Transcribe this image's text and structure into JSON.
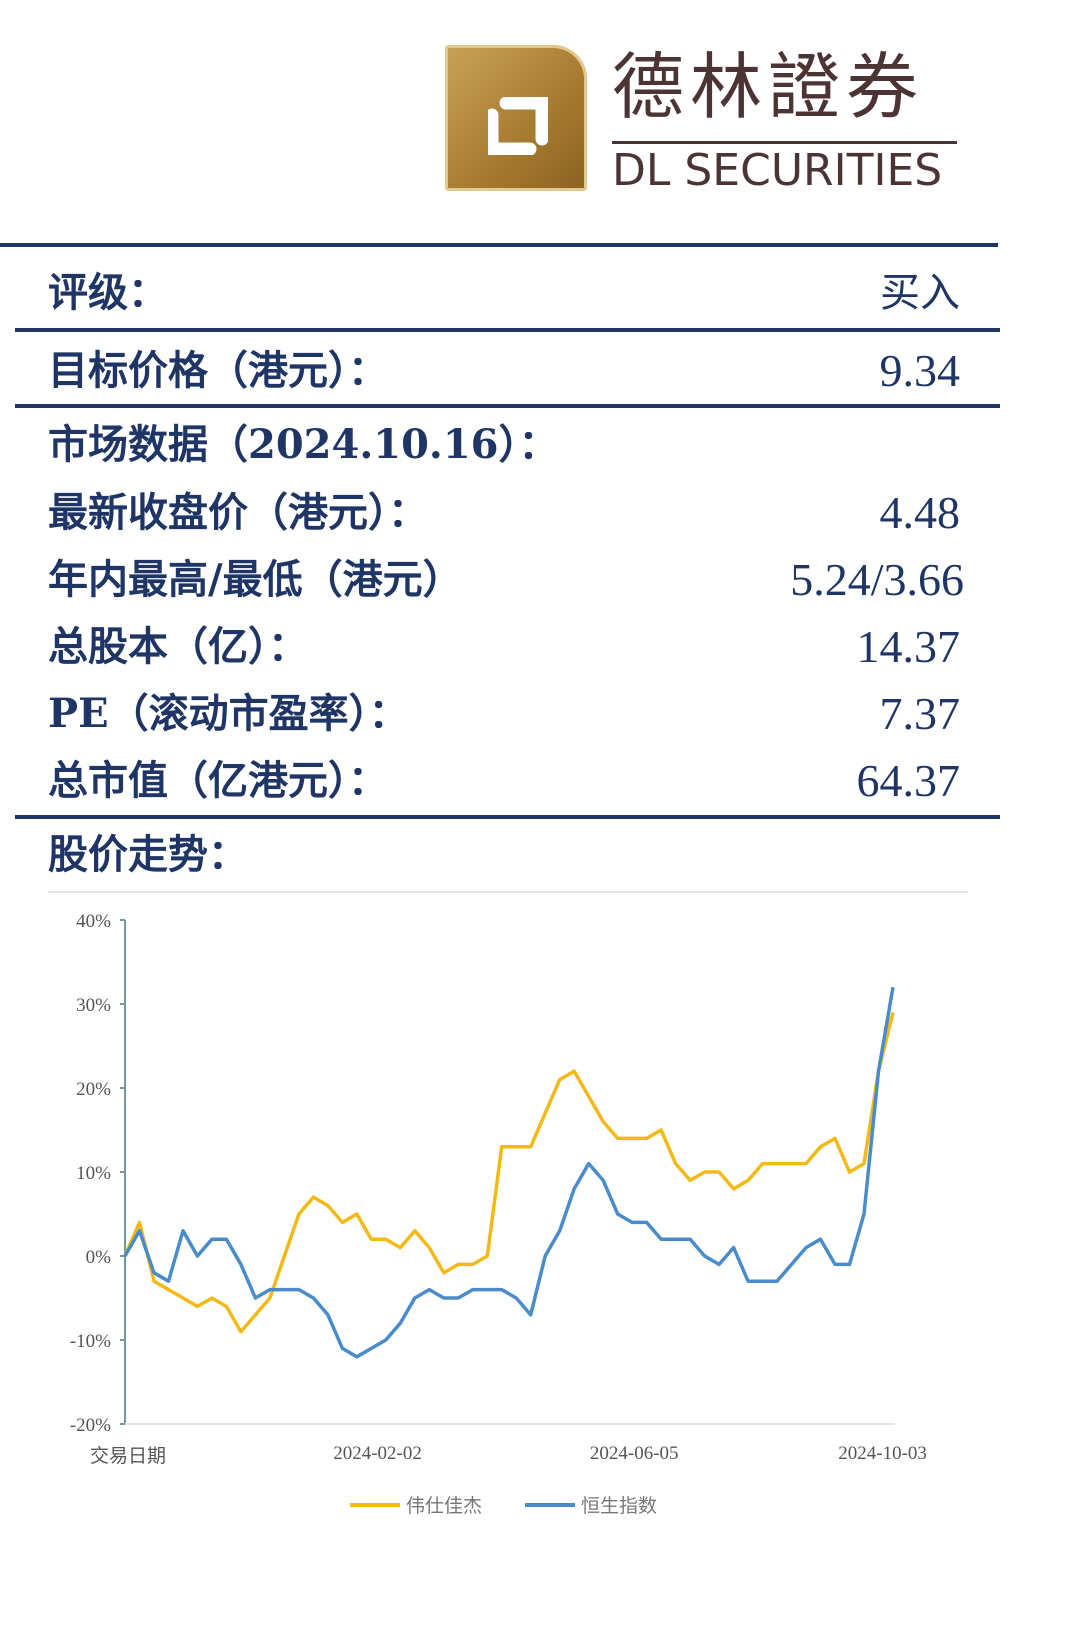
{
  "logo": {
    "name_cn": "德林證券",
    "name_en": "DL SECURITIES",
    "brand_color": "#b08535",
    "text_color": "#4d3434"
  },
  "rating": {
    "label": "评级：",
    "value": "买入"
  },
  "target_price": {
    "label": "目标价格（港元）：",
    "value": "9.34"
  },
  "market_data": {
    "title": "市场数据（2024.10.16）：",
    "rows": [
      {
        "label": "最新收盘价（港元）：",
        "value": "4.48"
      },
      {
        "label": "年内最高/最低（港元）",
        "value": "5.24/3.66"
      },
      {
        "label": "总股本（亿）：",
        "value": "14.37"
      },
      {
        "label": "PE（滚动市盈率）：",
        "value": "7.37"
      },
      {
        "label": "总市值（亿港元）：",
        "value": "64.37"
      }
    ]
  },
  "price_trend": {
    "title": "股价走势："
  },
  "colors": {
    "rule": "#1f3566",
    "series_stock": "#f5b916",
    "series_index": "#4a8ccb"
  },
  "chart_data": {
    "type": "line",
    "xlabel": "交易日期",
    "x_ticks": [
      "2024-02-02",
      "2024-06-05",
      "2024-10-03"
    ],
    "y_ticks": [
      "40%",
      "30%",
      "20%",
      "10%",
      "0%",
      "-10%",
      "-20%"
    ],
    "ylim": [
      -20,
      40
    ],
    "y_unit": "%",
    "grid": false,
    "legend": "bottom",
    "x": [
      "2023-10-03",
      "2023-10-10",
      "2023-10-17",
      "2023-10-24",
      "2023-10-31",
      "2023-11-07",
      "2023-11-14",
      "2023-11-21",
      "2023-11-28",
      "2023-12-05",
      "2023-12-12",
      "2023-12-19",
      "2023-12-26",
      "2024-01-02",
      "2024-01-09",
      "2024-01-16",
      "2024-01-23",
      "2024-01-30",
      "2024-02-06",
      "2024-02-13",
      "2024-02-20",
      "2024-02-27",
      "2024-03-05",
      "2024-03-12",
      "2024-03-19",
      "2024-03-26",
      "2024-04-02",
      "2024-04-09",
      "2024-04-16",
      "2024-04-23",
      "2024-04-30",
      "2024-05-07",
      "2024-05-14",
      "2024-05-21",
      "2024-05-28",
      "2024-06-04",
      "2024-06-11",
      "2024-06-18",
      "2024-06-25",
      "2024-07-02",
      "2024-07-09",
      "2024-07-16",
      "2024-07-23",
      "2024-07-30",
      "2024-08-06",
      "2024-08-13",
      "2024-08-20",
      "2024-08-27",
      "2024-09-03",
      "2024-09-10",
      "2024-09-17",
      "2024-09-24",
      "2024-10-01",
      "2024-10-08"
    ],
    "series": [
      {
        "name": "伟仕佳杰",
        "color": "#f5b916",
        "values": [
          0,
          4,
          -3,
          -4,
          -5,
          -6,
          -5,
          -6,
          -9,
          -7,
          -5,
          0,
          5,
          7,
          6,
          4,
          5,
          2,
          2,
          1,
          3,
          1,
          -2,
          -1,
          -1,
          0,
          13,
          13,
          13,
          17,
          21,
          22,
          19,
          16,
          14,
          14,
          14,
          15,
          11,
          9,
          10,
          10,
          8,
          9,
          11,
          11,
          11,
          11,
          13,
          14,
          10,
          11,
          22,
          29
        ]
      },
      {
        "name": "恒生指数",
        "color": "#4a8ccb",
        "values": [
          0,
          3,
          -2,
          -3,
          3,
          0,
          2,
          2,
          -1,
          -5,
          -4,
          -4,
          -4,
          -5,
          -7,
          -11,
          -12,
          -11,
          -10,
          -8,
          -5,
          -4,
          -5,
          -5,
          -4,
          -4,
          -4,
          -5,
          -7,
          0,
          3,
          8,
          11,
          9,
          5,
          4,
          4,
          2,
          2,
          2,
          0,
          -1,
          1,
          -3,
          -3,
          -3,
          -1,
          1,
          2,
          -1,
          -1,
          5,
          22,
          32
        ]
      }
    ]
  }
}
